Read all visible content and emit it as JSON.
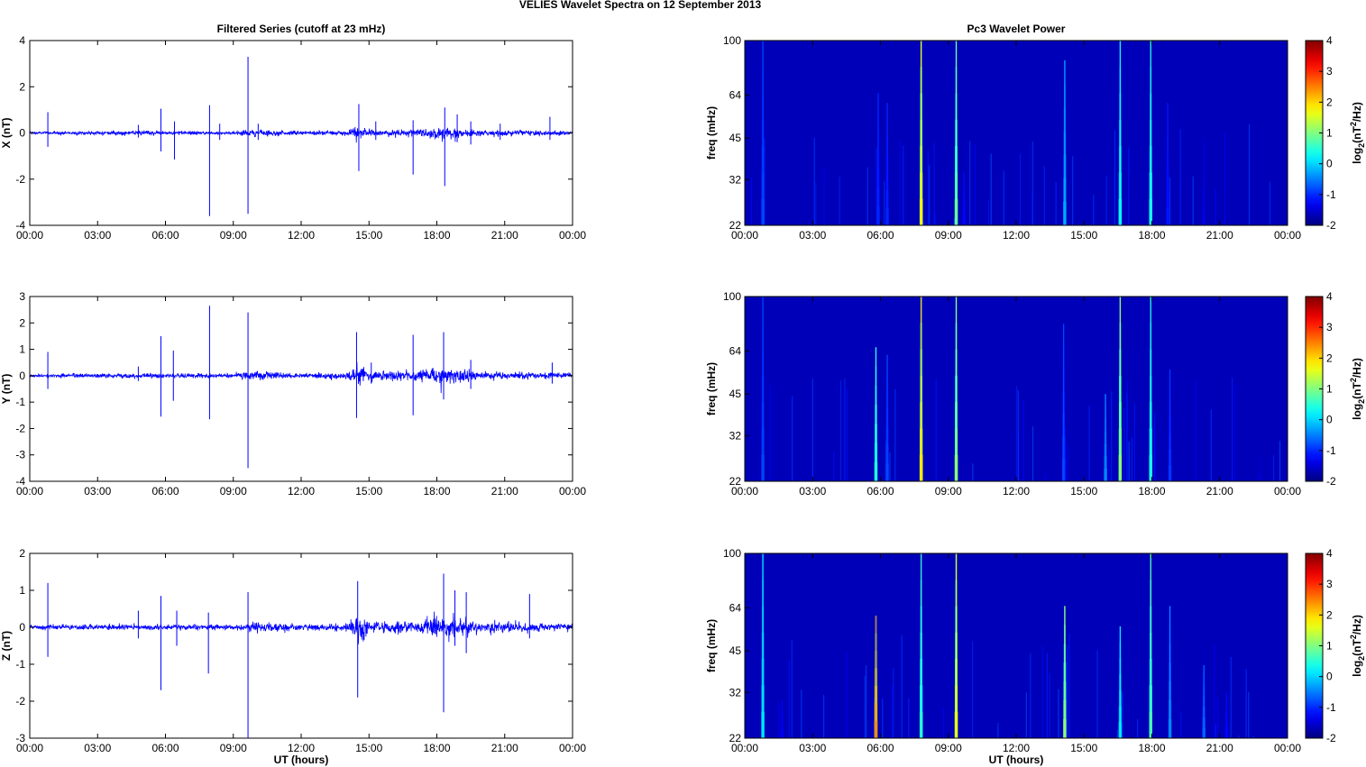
{
  "figure": {
    "suptitle": "VELIES Wavelet Spectra on 12 September 2013",
    "left_title": "Filtered Series (cutoff at 23 mHz)",
    "right_title": "Pc3 Wavelet Power",
    "x_label": "UT (hours)"
  },
  "chart_data": [
    {
      "type": "line",
      "panel": "X",
      "ylabel": "X (nT)",
      "ylim": [
        -4,
        4
      ],
      "yticks": [
        -4,
        -2,
        0,
        2,
        4
      ],
      "xlim": [
        0,
        24
      ],
      "xticks": [
        "00:00",
        "03:00",
        "06:00",
        "09:00",
        "12:00",
        "15:00",
        "18:00",
        "21:00",
        "00:00"
      ],
      "color": "#0000ff",
      "base_noise": [
        [
          0,
          0.05
        ],
        [
          5,
          0.08
        ],
        [
          9,
          0.06
        ],
        [
          10,
          0.14
        ],
        [
          11,
          0.1
        ],
        [
          12,
          0.07
        ],
        [
          14,
          0.1
        ],
        [
          14.5,
          0.28
        ],
        [
          15.2,
          0.12
        ],
        [
          17,
          0.14
        ],
        [
          18,
          0.25
        ],
        [
          19,
          0.2
        ],
        [
          20,
          0.11
        ],
        [
          24,
          0.08
        ]
      ],
      "spikes": [
        [
          0.8,
          0.9,
          -0.6
        ],
        [
          4.8,
          0.35,
          -0.2
        ],
        [
          5.8,
          1.05,
          -0.8
        ],
        [
          6.4,
          0.5,
          -1.15
        ],
        [
          7.95,
          1.2,
          -3.6
        ],
        [
          8.4,
          0.4,
          -0.3
        ],
        [
          9.65,
          3.3,
          -3.5
        ],
        [
          10.1,
          0.4,
          -0.3
        ],
        [
          14.55,
          1.25,
          -1.65
        ],
        [
          15.3,
          0.5,
          -0.3
        ],
        [
          16.95,
          0.55,
          -1.8
        ],
        [
          18.35,
          1.1,
          -2.3
        ],
        [
          18.9,
          0.8,
          -0.4
        ],
        [
          19.5,
          0.5,
          -0.5
        ],
        [
          20.8,
          0.4,
          -0.3
        ],
        [
          23,
          0.7,
          -0.3
        ]
      ]
    },
    {
      "type": "line",
      "panel": "Y",
      "ylabel": "Y (nT)",
      "ylim": [
        -4,
        3
      ],
      "yticks": [
        -4,
        -3,
        -2,
        -1,
        0,
        1,
        2,
        3
      ],
      "xlim": [
        0,
        24
      ],
      "xticks": [
        "00:00",
        "03:00",
        "06:00",
        "09:00",
        "12:00",
        "15:00",
        "18:00",
        "21:00",
        "00:00"
      ],
      "color": "#0000ff",
      "base_noise": [
        [
          0,
          0.06
        ],
        [
          5,
          0.08
        ],
        [
          9,
          0.07
        ],
        [
          10,
          0.17
        ],
        [
          11,
          0.11
        ],
        [
          12,
          0.08
        ],
        [
          14,
          0.12
        ],
        [
          14.5,
          0.3
        ],
        [
          15.2,
          0.14
        ],
        [
          17,
          0.15
        ],
        [
          18,
          0.28
        ],
        [
          19,
          0.24
        ],
        [
          20,
          0.13
        ],
        [
          24,
          0.09
        ]
      ],
      "spikes": [
        [
          0.8,
          0.9,
          -0.5
        ],
        [
          4.8,
          0.35,
          -0.2
        ],
        [
          5.8,
          1.5,
          -1.55
        ],
        [
          6.35,
          0.95,
          -0.95
        ],
        [
          7.95,
          2.65,
          -1.65
        ],
        [
          9.65,
          2.4,
          -3.5
        ],
        [
          14.45,
          1.65,
          -1.6
        ],
        [
          15.1,
          0.5,
          -0.3
        ],
        [
          16.95,
          1.55,
          -1.5
        ],
        [
          18.3,
          1.65,
          -0.9
        ],
        [
          19.5,
          0.6,
          -0.5
        ],
        [
          23.1,
          0.5,
          -0.3
        ]
      ]
    },
    {
      "type": "line",
      "panel": "Z",
      "ylabel": "Z (nT)",
      "ylim": [
        -3,
        2
      ],
      "yticks": [
        -3,
        -2,
        -1,
        0,
        1,
        2
      ],
      "xlim": [
        0,
        24
      ],
      "xticks": [
        "00:00",
        "03:00",
        "06:00",
        "09:00",
        "12:00",
        "15:00",
        "18:00",
        "21:00",
        "00:00"
      ],
      "color": "#0000ff",
      "base_noise": [
        [
          0,
          0.05
        ],
        [
          5,
          0.07
        ],
        [
          9,
          0.07
        ],
        [
          10,
          0.14
        ],
        [
          11,
          0.09
        ],
        [
          12,
          0.07
        ],
        [
          14,
          0.1
        ],
        [
          14.5,
          0.35
        ],
        [
          15.2,
          0.14
        ],
        [
          17,
          0.15
        ],
        [
          18,
          0.3
        ],
        [
          19,
          0.26
        ],
        [
          20,
          0.14
        ],
        [
          24,
          0.09
        ]
      ],
      "spikes": [
        [
          0.8,
          1.2,
          -0.8
        ],
        [
          4.8,
          0.45,
          -0.3
        ],
        [
          5.8,
          0.85,
          -1.7
        ],
        [
          6.5,
          0.45,
          -0.5
        ],
        [
          7.9,
          0.4,
          -1.25
        ],
        [
          9.65,
          0.95,
          -3.0
        ],
        [
          14.5,
          1.25,
          -1.9
        ],
        [
          18.3,
          1.45,
          -2.3
        ],
        [
          18.8,
          1.0,
          -0.5
        ],
        [
          19.3,
          0.95,
          -0.7
        ],
        [
          22.1,
          0.9,
          -0.3
        ]
      ]
    },
    {
      "type": "heatmap",
      "panel": "X",
      "ylabel": "freq (mHz)",
      "yscale": "log",
      "ylim": [
        22,
        100
      ],
      "yticks": [
        22,
        32,
        45,
        64,
        100
      ],
      "xlim": [
        0,
        24
      ],
      "xticks": [
        "00:00",
        "03:00",
        "06:00",
        "09:00",
        "12:00",
        "15:00",
        "18:00",
        "21:00",
        "00:00"
      ],
      "colorbar_label": "log2(nT^2/Hz)",
      "clim": [
        -2,
        4
      ],
      "cticks": [
        -2,
        -1,
        0,
        1,
        2,
        3,
        4
      ],
      "bursts": [
        [
          0.8,
          -0.8,
          100
        ],
        [
          5.9,
          -1.0,
          65
        ],
        [
          6.3,
          -1.0,
          60
        ],
        [
          7.8,
          1.8,
          100
        ],
        [
          9.35,
          1.0,
          100
        ],
        [
          9.7,
          -1.2,
          34
        ],
        [
          14.15,
          -0.2,
          85
        ],
        [
          16.6,
          0.4,
          100
        ],
        [
          17.95,
          0.5,
          100
        ],
        [
          18.7,
          -1.1,
          60
        ],
        [
          20.3,
          -1.4,
          45
        ]
      ]
    },
    {
      "type": "heatmap",
      "panel": "Y",
      "ylabel": "freq (mHz)",
      "yscale": "log",
      "ylim": [
        22,
        100
      ],
      "yticks": [
        22,
        32,
        45,
        64,
        100
      ],
      "xlim": [
        0,
        24
      ],
      "xticks": [
        "00:00",
        "03:00",
        "06:00",
        "09:00",
        "12:00",
        "15:00",
        "18:00",
        "21:00",
        "00:00"
      ],
      "colorbar_label": "log2(nT^2/Hz)",
      "clim": [
        -2,
        4
      ],
      "cticks": [
        -2,
        -1,
        0,
        1,
        2,
        3,
        4
      ],
      "bursts": [
        [
          0.8,
          -0.8,
          100
        ],
        [
          5.8,
          0.6,
          66
        ],
        [
          6.3,
          -0.8,
          62
        ],
        [
          7.8,
          2.0,
          100
        ],
        [
          9.35,
          1.2,
          100
        ],
        [
          14.1,
          -0.8,
          80
        ],
        [
          15.95,
          -0.4,
          45
        ],
        [
          16.6,
          1.2,
          100
        ],
        [
          17.95,
          0.5,
          100
        ],
        [
          18.8,
          -0.9,
          55
        ],
        [
          22.8,
          -1.5,
          28
        ]
      ]
    },
    {
      "type": "heatmap",
      "panel": "Z",
      "ylabel": "freq (mHz)",
      "yscale": "log",
      "ylim": [
        22,
        100
      ],
      "yticks": [
        22,
        32,
        45,
        64,
        100
      ],
      "xlim": [
        0,
        24
      ],
      "xticks": [
        "00:00",
        "03:00",
        "06:00",
        "09:00",
        "12:00",
        "15:00",
        "18:00",
        "21:00",
        "00:00"
      ],
      "colorbar_label": "log2(nT^2/Hz)",
      "clim": [
        -2,
        4
      ],
      "cticks": [
        -2,
        -1,
        0,
        1,
        2,
        3,
        4
      ],
      "bursts": [
        [
          0.8,
          0.2,
          100
        ],
        [
          1.65,
          -1.3,
          30
        ],
        [
          5.8,
          2.6,
          60
        ],
        [
          7.8,
          0.6,
          100
        ],
        [
          9.35,
          1.8,
          100
        ],
        [
          14.15,
          1.2,
          65
        ],
        [
          16.6,
          0.2,
          55
        ],
        [
          17.95,
          0.8,
          100
        ],
        [
          18.8,
          -0.4,
          65
        ],
        [
          20.3,
          -0.6,
          40
        ],
        [
          21.3,
          -1.2,
          32
        ]
      ]
    }
  ]
}
